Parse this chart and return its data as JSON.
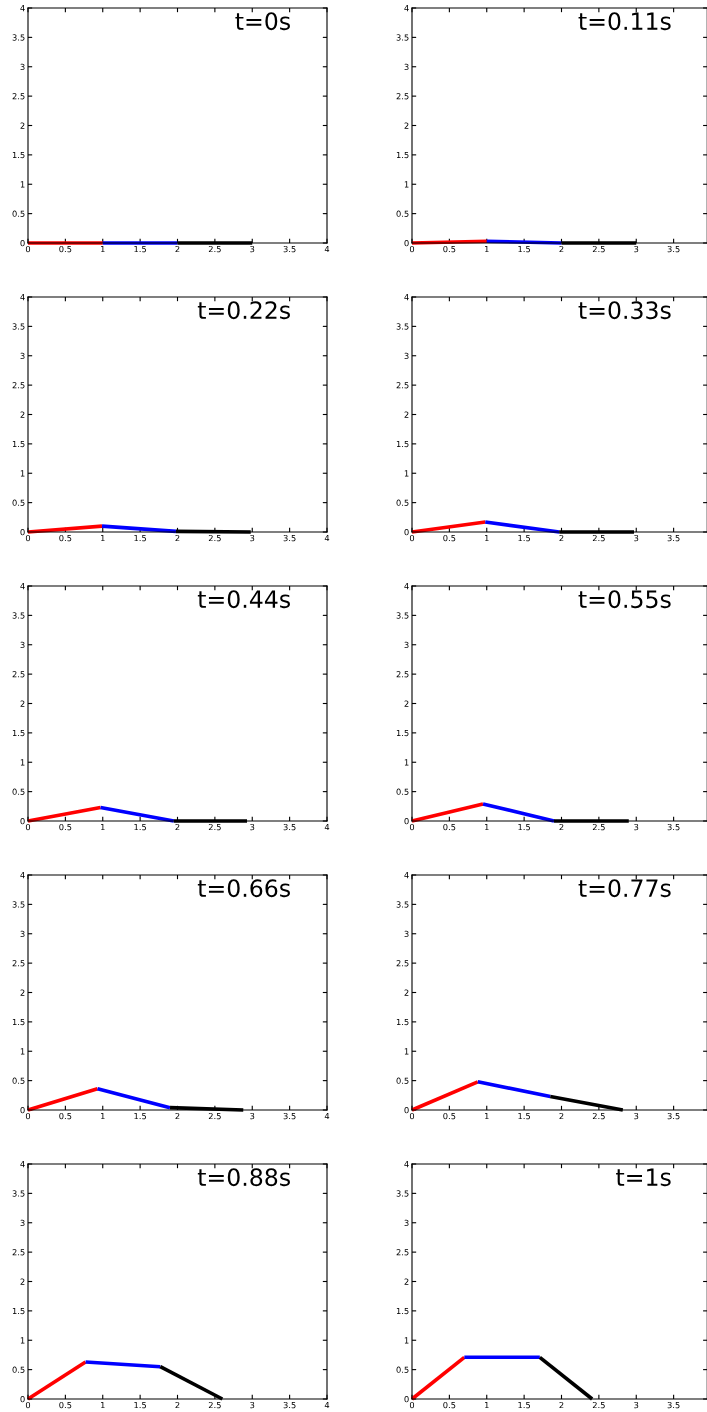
{
  "chart_data": [
    {
      "type": "line",
      "annotations": [
        "t=0s"
      ],
      "xlim": [
        0,
        4
      ],
      "ylim": [
        0,
        4
      ],
      "xticks": [
        0,
        0.5,
        1,
        1.5,
        2,
        2.5,
        3,
        3.5,
        4
      ],
      "yticks": [
        0,
        0.5,
        1,
        1.5,
        2,
        2.5,
        3,
        3.5,
        4
      ],
      "grid": false,
      "legend": false,
      "series": [
        {
          "color": "#ff0000",
          "x": [
            0,
            1
          ],
          "values": [
            0,
            0
          ]
        },
        {
          "color": "#0000ff",
          "x": [
            1,
            2
          ],
          "values": [
            0,
            0
          ]
        },
        {
          "color": "#000000",
          "x": [
            2,
            3
          ],
          "values": [
            0,
            0
          ]
        }
      ]
    },
    {
      "type": "line",
      "annotations": [
        "t=0.11s"
      ],
      "xlim": [
        0,
        3.95
      ],
      "ylim": [
        0,
        4
      ],
      "xticks": [
        0,
        0.5,
        1,
        1.5,
        2,
        2.5,
        3,
        3.5
      ],
      "yticks": [
        0,
        0.5,
        1,
        1.5,
        2,
        2.5,
        3,
        3.5,
        4
      ],
      "grid": false,
      "legend": false,
      "series": [
        {
          "color": "#ff0000",
          "x": [
            0,
            1
          ],
          "values": [
            0,
            0.03
          ]
        },
        {
          "color": "#0000ff",
          "x": [
            1,
            2
          ],
          "values": [
            0.03,
            0
          ]
        },
        {
          "color": "#000000",
          "x": [
            2,
            3
          ],
          "values": [
            0,
            0
          ]
        }
      ]
    },
    {
      "type": "line",
      "annotations": [
        "t=0.22s"
      ],
      "xlim": [
        0,
        4
      ],
      "ylim": [
        0,
        4
      ],
      "xticks": [
        0,
        0.5,
        1,
        1.5,
        2,
        2.5,
        3,
        3.5,
        4
      ],
      "yticks": [
        0,
        0.5,
        1,
        1.5,
        2,
        2.5,
        3,
        3.5,
        4
      ],
      "grid": false,
      "legend": false,
      "series": [
        {
          "color": "#ff0000",
          "x": [
            0,
            0.99
          ],
          "values": [
            0,
            0.1
          ]
        },
        {
          "color": "#0000ff",
          "x": [
            0.99,
            1.98
          ],
          "values": [
            0.1,
            0.01
          ]
        },
        {
          "color": "#000000",
          "x": [
            1.98,
            2.98
          ],
          "values": [
            0.01,
            0
          ]
        }
      ]
    },
    {
      "type": "line",
      "annotations": [
        "t=0.33s"
      ],
      "xlim": [
        0,
        3.95
      ],
      "ylim": [
        0,
        4
      ],
      "xticks": [
        0,
        0.5,
        1,
        1.5,
        2,
        2.5,
        3,
        3.5
      ],
      "yticks": [
        0,
        0.5,
        1,
        1.5,
        2,
        2.5,
        3,
        3.5,
        4
      ],
      "grid": false,
      "legend": false,
      "series": [
        {
          "color": "#ff0000",
          "x": [
            0,
            0.98
          ],
          "values": [
            0,
            0.17
          ]
        },
        {
          "color": "#0000ff",
          "x": [
            0.98,
            1.97
          ],
          "values": [
            0.17,
            0
          ]
        },
        {
          "color": "#000000",
          "x": [
            1.97,
            2.97
          ],
          "values": [
            0,
            0
          ]
        }
      ]
    },
    {
      "type": "line",
      "annotations": [
        "t=0.44s"
      ],
      "xlim": [
        0,
        4
      ],
      "ylim": [
        0,
        4
      ],
      "xticks": [
        0,
        0.5,
        1,
        1.5,
        2,
        2.5,
        3,
        3.5,
        4
      ],
      "yticks": [
        0,
        0.5,
        1,
        1.5,
        2,
        2.5,
        3,
        3.5,
        4
      ],
      "grid": false,
      "legend": false,
      "series": [
        {
          "color": "#ff0000",
          "x": [
            0,
            0.97
          ],
          "values": [
            0,
            0.23
          ]
        },
        {
          "color": "#0000ff",
          "x": [
            0.97,
            1.95
          ],
          "values": [
            0.23,
            0
          ]
        },
        {
          "color": "#000000",
          "x": [
            1.95,
            2.93
          ],
          "values": [
            0,
            0
          ]
        }
      ]
    },
    {
      "type": "line",
      "annotations": [
        "t=0.55s"
      ],
      "xlim": [
        0,
        3.95
      ],
      "ylim": [
        0,
        4
      ],
      "xticks": [
        0,
        0.5,
        1,
        1.5,
        2,
        2.5,
        3,
        3.5
      ],
      "yticks": [
        0,
        0.5,
        1,
        1.5,
        2,
        2.5,
        3,
        3.5,
        4
      ],
      "grid": false,
      "legend": false,
      "series": [
        {
          "color": "#ff0000",
          "x": [
            0,
            0.95
          ],
          "values": [
            0,
            0.29
          ]
        },
        {
          "color": "#0000ff",
          "x": [
            0.95,
            1.9
          ],
          "values": [
            0.29,
            0
          ]
        },
        {
          "color": "#000000",
          "x": [
            1.9,
            2.9
          ],
          "values": [
            0,
            0
          ]
        }
      ]
    },
    {
      "type": "line",
      "annotations": [
        "t=0.66s"
      ],
      "xlim": [
        0,
        4
      ],
      "ylim": [
        0,
        4
      ],
      "xticks": [
        0,
        0.5,
        1,
        1.5,
        2,
        2.5,
        3,
        3.5,
        4
      ],
      "yticks": [
        0,
        0.5,
        1,
        1.5,
        2,
        2.5,
        3,
        3.5,
        4
      ],
      "grid": false,
      "legend": false,
      "series": [
        {
          "color": "#ff0000",
          "x": [
            0,
            0.93
          ],
          "values": [
            0,
            0.36
          ]
        },
        {
          "color": "#0000ff",
          "x": [
            0.93,
            1.9
          ],
          "values": [
            0.36,
            0.04
          ]
        },
        {
          "color": "#000000",
          "x": [
            1.9,
            2.88
          ],
          "values": [
            0.04,
            0
          ]
        }
      ]
    },
    {
      "type": "line",
      "annotations": [
        "t=0.77s"
      ],
      "xlim": [
        0,
        3.95
      ],
      "ylim": [
        0,
        4
      ],
      "xticks": [
        0,
        0.5,
        1,
        1.5,
        2,
        2.5,
        3,
        3.5
      ],
      "yticks": [
        0,
        0.5,
        1,
        1.5,
        2,
        2.5,
        3,
        3.5,
        4
      ],
      "grid": false,
      "legend": false,
      "series": [
        {
          "color": "#ff0000",
          "x": [
            0,
            0.88
          ],
          "values": [
            0,
            0.48
          ]
        },
        {
          "color": "#0000ff",
          "x": [
            0.88,
            1.85
          ],
          "values": [
            0.48,
            0.23
          ]
        },
        {
          "color": "#000000",
          "x": [
            1.85,
            2.82
          ],
          "values": [
            0.23,
            0
          ]
        }
      ]
    },
    {
      "type": "line",
      "annotations": [
        "t=0.88s"
      ],
      "xlim": [
        0,
        4
      ],
      "ylim": [
        0,
        4
      ],
      "xticks": [
        0,
        0.5,
        1,
        1.5,
        2,
        2.5,
        3,
        3.5,
        4
      ],
      "yticks": [
        0,
        0.5,
        1,
        1.5,
        2,
        2.5,
        3,
        3.5,
        4
      ],
      "grid": false,
      "legend": false,
      "series": [
        {
          "color": "#ff0000",
          "x": [
            0,
            0.77
          ],
          "values": [
            0,
            0.63
          ]
        },
        {
          "color": "#0000ff",
          "x": [
            0.77,
            1.77
          ],
          "values": [
            0.63,
            0.55
          ]
        },
        {
          "color": "#000000",
          "x": [
            1.77,
            2.6
          ],
          "values": [
            0.55,
            0
          ]
        }
      ]
    },
    {
      "type": "line",
      "annotations": [
        "t=1s"
      ],
      "xlim": [
        0,
        3.95
      ],
      "ylim": [
        0,
        4
      ],
      "xticks": [
        0,
        0.5,
        1,
        1.5,
        2,
        2.5,
        3,
        3.5
      ],
      "yticks": [
        0,
        0.5,
        1,
        1.5,
        2,
        2.5,
        3,
        3.5,
        4
      ],
      "grid": false,
      "legend": false,
      "series": [
        {
          "color": "#ff0000",
          "x": [
            0,
            0.7
          ],
          "values": [
            0,
            0.71
          ]
        },
        {
          "color": "#0000ff",
          "x": [
            0.7,
            1.71
          ],
          "values": [
            0.71,
            0.71
          ]
        },
        {
          "color": "#000000",
          "x": [
            1.71,
            2.41
          ],
          "values": [
            0.71,
            0
          ]
        }
      ]
    }
  ]
}
